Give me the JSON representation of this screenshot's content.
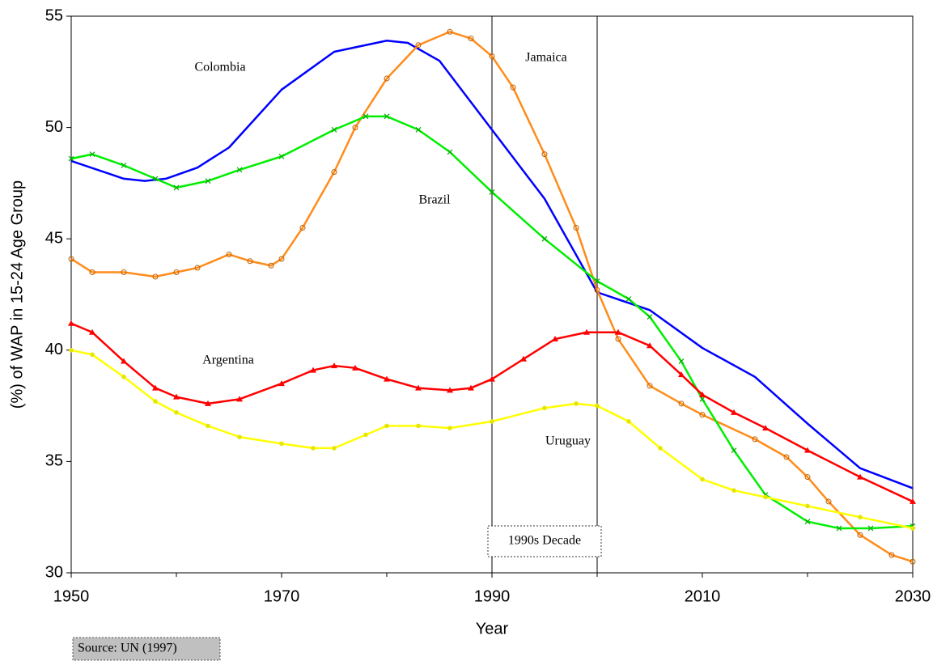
{
  "chart_data": {
    "type": "line",
    "x_label": "Year",
    "y_label": "(%) of WAP in 15-24 Age Group",
    "xlim": [
      1950,
      2030
    ],
    "ylim": [
      30,
      55
    ],
    "xticks": [
      1950,
      1970,
      1990,
      2010,
      2030
    ],
    "xminorticks": [
      1960,
      1980,
      2000,
      2020
    ],
    "yticks": [
      30,
      35,
      40,
      45,
      50,
      55
    ],
    "vlines": [
      1990,
      2000
    ],
    "vlines_label": "1990s Decade",
    "source": "Source: UN (1997)",
    "series": [
      {
        "name": "Colombia",
        "color": "#0000ff",
        "marker": "none",
        "x": [
          1950,
          1955,
          1957,
          1959,
          1962,
          1965,
          1970,
          1975,
          1980,
          1982,
          1985,
          1990,
          1995,
          2000,
          2005,
          2010,
          2015,
          2020,
          2025,
          2030
        ],
        "values": [
          48.5,
          47.7,
          47.6,
          47.7,
          48.2,
          49.1,
          51.7,
          53.4,
          53.9,
          53.8,
          53.0,
          49.9,
          46.8,
          42.6,
          41.8,
          40.1,
          38.8,
          36.7,
          34.7,
          33.8
        ]
      },
      {
        "name": "Jamaica",
        "color": "#ff8c1a",
        "marker": "circle",
        "x": [
          1950,
          1952,
          1955,
          1958,
          1960,
          1962,
          1965,
          1967,
          1969,
          1970,
          1972,
          1975,
          1977,
          1980,
          1983,
          1986,
          1988,
          1990,
          1992,
          1995,
          1998,
          2000,
          2002,
          2005,
          2008,
          2010,
          2015,
          2018,
          2020,
          2022,
          2025,
          2028,
          2030
        ],
        "values": [
          44.1,
          43.5,
          43.5,
          43.3,
          43.5,
          43.7,
          44.3,
          44.0,
          43.8,
          44.1,
          45.5,
          48.0,
          50.0,
          52.2,
          53.7,
          54.3,
          54.0,
          53.2,
          51.8,
          48.8,
          45.5,
          42.7,
          40.5,
          38.4,
          37.6,
          37.1,
          36.0,
          35.2,
          34.3,
          33.2,
          31.7,
          30.8,
          30.5
        ]
      },
      {
        "name": "Brazil",
        "color": "#00ee00",
        "marker": "cross",
        "x": [
          1950,
          1952,
          1955,
          1958,
          1960,
          1963,
          1966,
          1970,
          1975,
          1978,
          1980,
          1983,
          1986,
          1990,
          1995,
          2000,
          2003,
          2005,
          2008,
          2010,
          2013,
          2016,
          2020,
          2023,
          2026,
          2030
        ],
        "values": [
          48.6,
          48.8,
          48.3,
          47.7,
          47.3,
          47.6,
          48.1,
          48.7,
          49.9,
          50.5,
          50.5,
          49.9,
          48.9,
          47.1,
          45.0,
          43.1,
          42.3,
          41.5,
          39.5,
          37.8,
          35.5,
          33.5,
          32.3,
          32.0,
          32.0,
          32.1
        ]
      },
      {
        "name": "Argentina",
        "color": "#ff0000",
        "marker": "triangle",
        "x": [
          1950,
          1952,
          1955,
          1958,
          1960,
          1963,
          1966,
          1970,
          1973,
          1975,
          1977,
          1980,
          1983,
          1986,
          1988,
          1990,
          1993,
          1996,
          1999,
          2002,
          2005,
          2008,
          2010,
          2013,
          2016,
          2020,
          2025,
          2030
        ],
        "values": [
          41.2,
          40.8,
          39.5,
          38.3,
          37.9,
          37.6,
          37.8,
          38.5,
          39.1,
          39.3,
          39.2,
          38.7,
          38.3,
          38.2,
          38.3,
          38.7,
          39.6,
          40.5,
          40.8,
          40.8,
          40.2,
          38.9,
          38.0,
          37.2,
          36.5,
          35.5,
          34.3,
          33.2
        ]
      },
      {
        "name": "Uruguay",
        "color": "#ffff00",
        "marker": "dot",
        "x": [
          1950,
          1952,
          1955,
          1958,
          1960,
          1963,
          1966,
          1970,
          1973,
          1975,
          1978,
          1980,
          1983,
          1986,
          1990,
          1995,
          1998,
          2000,
          2003,
          2006,
          2010,
          2013,
          2016,
          2020,
          2025,
          2030
        ],
        "values": [
          40.0,
          39.8,
          38.8,
          37.7,
          37.2,
          36.6,
          36.1,
          35.8,
          35.6,
          35.6,
          36.2,
          36.6,
          36.6,
          36.5,
          36.8,
          37.4,
          37.6,
          37.5,
          36.8,
          35.6,
          34.2,
          33.7,
          33.4,
          33.0,
          32.5,
          32.0
        ]
      }
    ]
  }
}
